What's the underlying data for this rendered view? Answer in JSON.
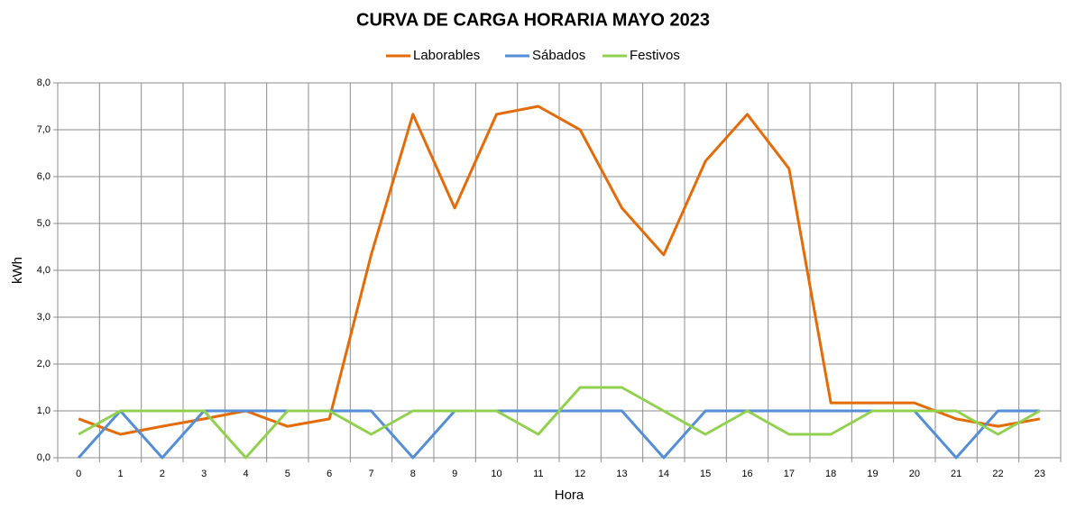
{
  "chart_data": {
    "type": "line",
    "title": "CURVA DE CARGA HORARIA MAYO 2023",
    "x_label": "Hora",
    "y_label": "kWh",
    "categories": [
      "0",
      "1",
      "2",
      "3",
      "4",
      "5",
      "6",
      "7",
      "8",
      "9",
      "10",
      "11",
      "12",
      "13",
      "14",
      "15",
      "16",
      "17",
      "18",
      "19",
      "20",
      "21",
      "22",
      "23"
    ],
    "series": [
      {
        "name": "Laborables",
        "color": "#e36c0a",
        "values": [
          0.83,
          0.5,
          0.67,
          0.83,
          1.0,
          0.67,
          0.83,
          4.33,
          7.33,
          5.33,
          7.33,
          7.5,
          7.0,
          5.33,
          4.33,
          6.33,
          7.33,
          6.17,
          1.17,
          1.17,
          1.17,
          0.83,
          0.67,
          0.83
        ]
      },
      {
        "name": "Sábados",
        "color": "#558ed5",
        "values": [
          0,
          1,
          0,
          1,
          1,
          1,
          1,
          1,
          0,
          1,
          1,
          1,
          1,
          1,
          0,
          1,
          1,
          1,
          1,
          1,
          1,
          0,
          1,
          1
        ]
      },
      {
        "name": "Festivos",
        "color": "#92d050",
        "values": [
          0.5,
          1,
          1,
          1,
          0,
          1,
          1,
          0.5,
          1,
          1,
          1,
          0.5,
          1.5,
          1.5,
          1,
          0.5,
          1,
          0.5,
          0.5,
          1,
          1,
          1,
          0.5,
          1
        ]
      }
    ],
    "ylim": [
      0,
      8
    ],
    "yticks": [
      {
        "value": 0,
        "label": "0,0"
      },
      {
        "value": 1,
        "label": "1,0"
      },
      {
        "value": 2,
        "label": "2,0"
      },
      {
        "value": 3,
        "label": "3,0"
      },
      {
        "value": 4,
        "label": "4,0"
      },
      {
        "value": 5,
        "label": "5,0"
      },
      {
        "value": 6,
        "label": "6,0"
      },
      {
        "value": 7,
        "label": "7,0"
      },
      {
        "value": 8,
        "label": "8,0"
      }
    ],
    "grid": true,
    "legend": "top"
  }
}
